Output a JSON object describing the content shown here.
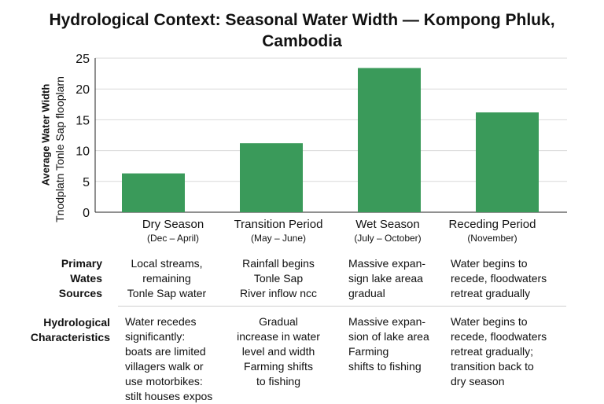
{
  "chart_data": {
    "type": "bar",
    "title": "Hydrological Context: Seasonal Water Width — Kompong Phluk, Cambodia",
    "ylabel_line1": "Average Water Width",
    "ylabel_line2": "Tnodplatn Tonle Sap flooplarn",
    "categories": [
      "Dry Season",
      "Transition Period",
      "Wet Season",
      "Receding Period"
    ],
    "category_periods": [
      "(Dec – April)",
      "(May – June)",
      "(July – October)",
      "(November)"
    ],
    "values": [
      6.3,
      11.2,
      23.4,
      16.2
    ],
    "ylim": [
      0,
      25
    ],
    "yticks": [
      0,
      5,
      10,
      15,
      20,
      25
    ],
    "grid": true,
    "bar_color": "#3a9a5a",
    "grid_color": "#d9d9d9"
  },
  "table": {
    "row1_heading": "Primary\nWates\nSources",
    "row2_heading": "Hydrological\nCharacteristics",
    "sources": [
      "Local streams,\nremaining\nTonle Sap water",
      "Rainfall begins\nTonle Sap\nRiver inflow ncc",
      "Massive expan-\nsign lake areaa\ngradual",
      "Water begins to\nrecede, floodwaters\nretreat gradually"
    ],
    "characteristics": [
      "Water recedes\nsignificantly:\nboats are limited\nvillagers walk or\nuse motorbikes:\nstilt houses expos",
      "Gradual\nincrease in water\nlevel and width\nFarming shifts\nto fishing",
      "Massive expan-\nsion of lake area\nFarming\nshifts to fishing",
      "Water begins to\nrecede, floodwaters\nretreat gradually;\ntransition back to\ndry season"
    ]
  }
}
